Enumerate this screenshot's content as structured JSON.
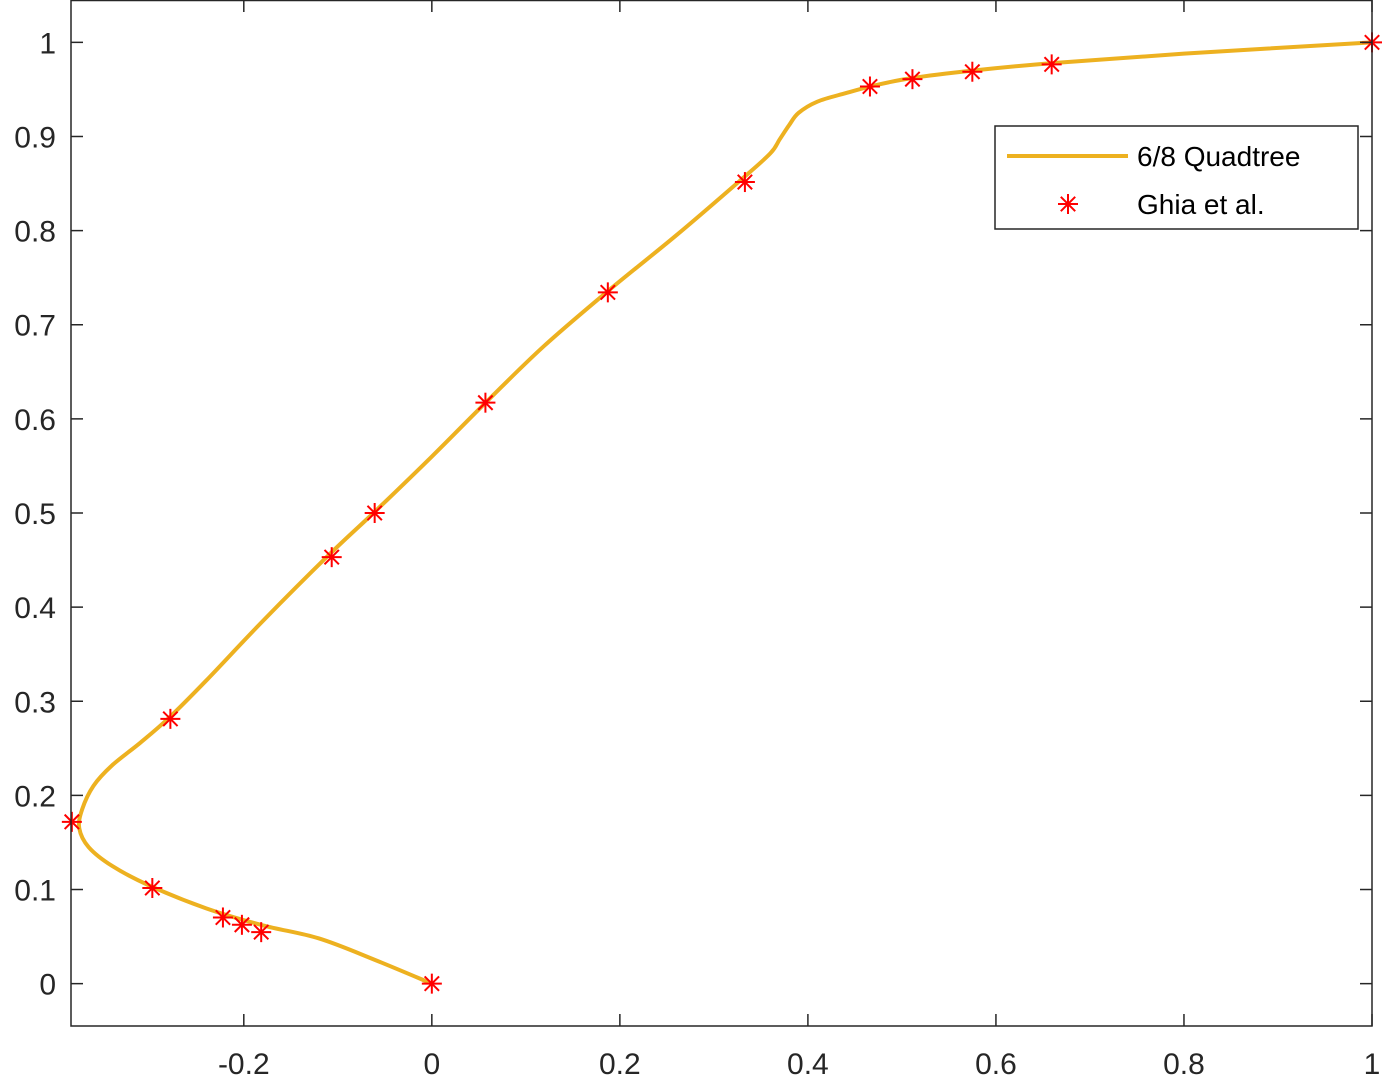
{
  "chart_data": {
    "type": "line",
    "xlim": [
      -0.3838,
      1
    ],
    "ylim": [
      -0.045,
      1.045
    ],
    "xticks": [
      "-0.2",
      "0",
      "0.2",
      "0.4",
      "0.6",
      "0.8",
      "1"
    ],
    "xtick_values": [
      -0.2,
      0,
      0.2,
      0.4,
      0.6,
      0.8,
      1
    ],
    "yticks": [
      "0",
      "0.1",
      "0.2",
      "0.3",
      "0.4",
      "0.5",
      "0.6",
      "0.7",
      "0.8",
      "0.9",
      "1"
    ],
    "ytick_values": [
      0,
      0.1,
      0.2,
      0.3,
      0.4,
      0.5,
      0.6,
      0.7,
      0.8,
      0.9,
      1
    ],
    "grid": false,
    "box": true,
    "legend": {
      "placement": "top-right",
      "entries": [
        "6/8 Quadtree",
        "Ghia et al."
      ]
    },
    "series": [
      {
        "name": "6/8 Quadtree",
        "style": "line",
        "color": "#EDB120",
        "x": [
          0,
          -0.06,
          -0.12,
          -0.18,
          -0.24,
          -0.3,
          -0.34,
          -0.365,
          -0.375,
          -0.372,
          -0.36,
          -0.34,
          -0.31,
          -0.28,
          -0.24,
          -0.18,
          -0.11,
          -0.06,
          0.0,
          0.06,
          0.12,
          0.19,
          0.26,
          0.33,
          0.36,
          0.37,
          0.38,
          0.39,
          0.41,
          0.44,
          0.47,
          0.51,
          0.575,
          0.66,
          0.8,
          1.0
        ],
        "y": [
          0,
          0.025,
          0.048,
          0.062,
          0.08,
          0.104,
          0.125,
          0.145,
          0.165,
          0.185,
          0.21,
          0.232,
          0.256,
          0.282,
          0.322,
          0.385,
          0.455,
          0.502,
          0.56,
          0.62,
          0.678,
          0.738,
          0.795,
          0.855,
          0.882,
          0.897,
          0.912,
          0.925,
          0.937,
          0.946,
          0.954,
          0.962,
          0.97,
          0.978,
          0.988,
          1.0
        ]
      },
      {
        "name": "Ghia et al.",
        "style": "marker",
        "marker": "asterisk",
        "color": "#FF0000",
        "x": [
          0,
          -0.1815,
          -0.202,
          -0.2222,
          -0.2973,
          -0.3829,
          -0.2781,
          -0.1065,
          -0.0608,
          0.057,
          0.1872,
          0.333,
          0.466,
          0.5112,
          0.5749,
          0.6593,
          1.0
        ],
        "y": [
          0,
          0.0547,
          0.0625,
          0.0703,
          0.1016,
          0.1719,
          0.2813,
          0.4531,
          0.5,
          0.6172,
          0.7344,
          0.8516,
          0.9531,
          0.9609,
          0.9688,
          0.9766,
          1.0
        ]
      }
    ]
  }
}
